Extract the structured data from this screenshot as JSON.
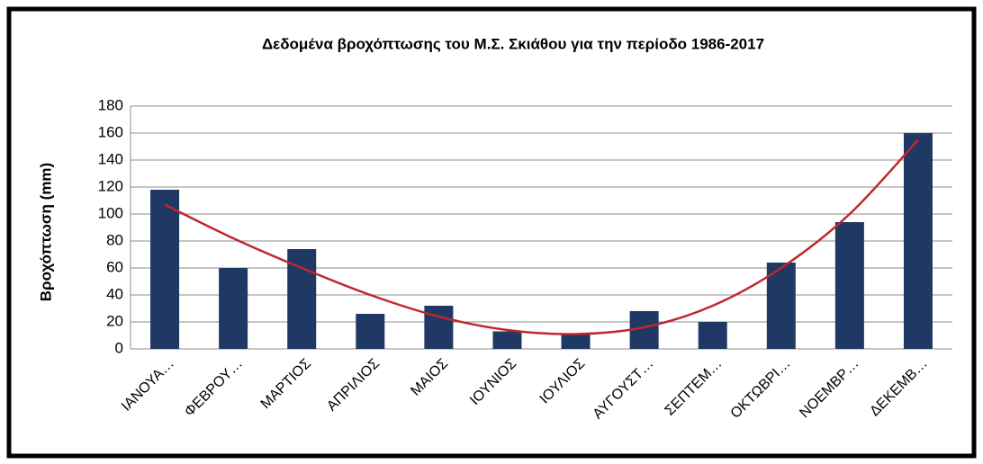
{
  "chart_data": {
    "type": "bar",
    "title": "Δεδομένα βροχόπτωσης του Μ.Σ. Σκιάθου για την περίοδο 1986-2017",
    "y_label": "Βροχόπτωση (mm)",
    "categories": [
      "ΙΑΝΟΥΑ…",
      "ΦΕΒΡΟΥ…",
      "ΜΑΡΤΙΟΣ",
      "ΑΠΡΙΛΙΟΣ",
      "ΜΑΙΟΣ",
      "ΙΟΥΝΙΟΣ",
      "ΙΟΥΛΙΟΣ",
      "ΑΥΓΟΥΣΤ…",
      "ΣΕΠΤΕΜ…",
      "ΟΚΤΩΒΡΙ…",
      "ΝΟΕΜΒΡ…",
      "ΔΕΚΕΜΒ…"
    ],
    "values": [
      118,
      60,
      74,
      26,
      32,
      13,
      11,
      28,
      20,
      64,
      94,
      160
    ],
    "color": "#1f3864",
    "trendline": {
      "color": "#c0272d",
      "values": [
        107,
        82,
        60,
        40,
        24,
        14,
        11,
        16,
        32,
        60,
        100,
        155
      ]
    },
    "ylim": [
      0,
      180
    ],
    "yticks": [
      0,
      20,
      40,
      60,
      80,
      100,
      120,
      140,
      160,
      180
    ],
    "grid": true
  }
}
